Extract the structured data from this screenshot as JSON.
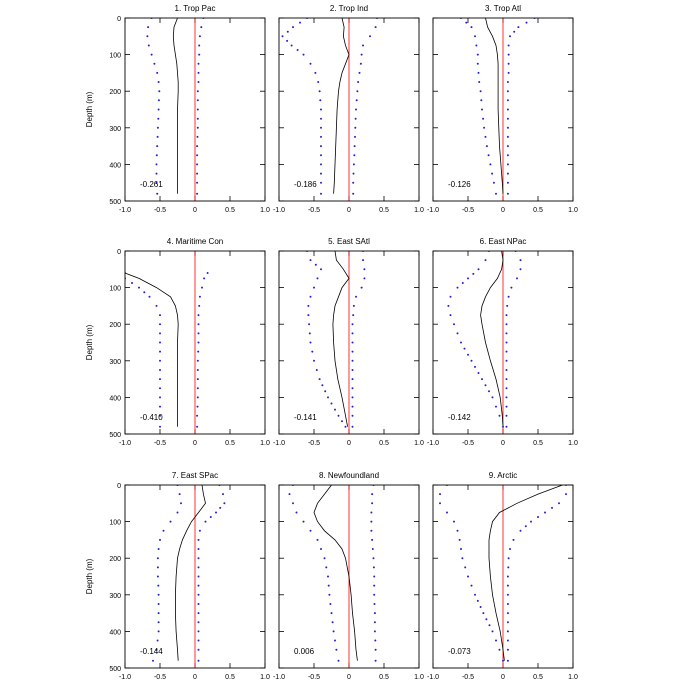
{
  "figure": {
    "ylabel": "Depth (m)",
    "x_ticks": [
      "-1.0",
      "-0.5",
      "0",
      "0.5",
      "1.0"
    ],
    "y_ticks": [
      "0",
      "100",
      "200",
      "300",
      "400",
      "500"
    ],
    "colors": {
      "mean": "#000000",
      "spread": "#2222cc",
      "zero": "#ff0000"
    }
  },
  "chart_data": [
    {
      "type": "line",
      "title": "1. Trop Pac",
      "value_label": "-0.261",
      "xlim": [
        -1,
        1
      ],
      "ylim": [
        0,
        500
      ],
      "y_inverted": true,
      "depth": [
        0,
        25,
        50,
        75,
        100,
        125,
        150,
        175,
        200,
        250,
        300,
        350,
        400,
        450,
        480
      ],
      "series": [
        {
          "name": "mean",
          "style": "solid",
          "values": [
            -0.25,
            -0.3,
            -0.31,
            -0.3,
            -0.28,
            -0.26,
            -0.25,
            -0.24,
            -0.24,
            -0.25,
            -0.25,
            -0.25,
            -0.25,
            -0.25,
            -0.25
          ]
        },
        {
          "name": "lower",
          "style": "dotted",
          "values": [
            -0.62,
            -0.67,
            -0.68,
            -0.66,
            -0.62,
            -0.58,
            -0.54,
            -0.52,
            -0.51,
            -0.52,
            -0.53,
            -0.54,
            -0.55,
            -0.55,
            -0.54
          ]
        },
        {
          "name": "upper",
          "style": "dotted",
          "values": [
            0.12,
            0.09,
            0.07,
            0.06,
            0.06,
            0.05,
            0.05,
            0.05,
            0.04,
            0.04,
            0.04,
            0.03,
            0.03,
            0.03,
            0.03
          ]
        }
      ]
    },
    {
      "type": "line",
      "title": "2. Trop Ind",
      "value_label": "-0.186",
      "xlim": [
        -1,
        1
      ],
      "ylim": [
        0,
        500
      ],
      "y_inverted": true,
      "depth": [
        0,
        25,
        50,
        75,
        100,
        125,
        150,
        175,
        200,
        250,
        300,
        350,
        400,
        450,
        480
      ],
      "series": [
        {
          "name": "mean",
          "style": "solid",
          "values": [
            -0.1,
            -0.07,
            -0.08,
            -0.05,
            0.0,
            -0.05,
            -0.1,
            -0.13,
            -0.15,
            -0.17,
            -0.18,
            -0.19,
            -0.2,
            -0.21,
            -0.22
          ]
        },
        {
          "name": "lower",
          "style": "dotted",
          "values": [
            -0.6,
            -0.8,
            -0.95,
            -0.82,
            -0.65,
            -0.55,
            -0.48,
            -0.44,
            -0.42,
            -0.4,
            -0.4,
            -0.4,
            -0.4,
            -0.4,
            -0.4
          ]
        },
        {
          "name": "upper",
          "style": "dotted",
          "values": [
            0.4,
            0.38,
            0.3,
            0.2,
            0.18,
            0.17,
            0.15,
            0.13,
            0.12,
            0.1,
            0.09,
            0.08,
            0.07,
            0.06,
            0.06
          ]
        }
      ]
    },
    {
      "type": "line",
      "title": "3. Trop Atl",
      "value_label": "-0.126",
      "xlim": [
        -1,
        1
      ],
      "ylim": [
        0,
        500
      ],
      "y_inverted": true,
      "depth": [
        0,
        25,
        50,
        75,
        100,
        125,
        150,
        175,
        200,
        250,
        300,
        350,
        400,
        450,
        480
      ],
      "series": [
        {
          "name": "mean",
          "style": "solid",
          "values": [
            -0.25,
            -0.22,
            -0.15,
            -0.1,
            -0.08,
            -0.07,
            -0.07,
            -0.07,
            -0.07,
            -0.07,
            -0.06,
            -0.05,
            -0.03,
            -0.01,
            0.0
          ]
        },
        {
          "name": "lower",
          "style": "dotted",
          "values": [
            -0.6,
            -0.45,
            -0.4,
            -0.38,
            -0.36,
            -0.36,
            -0.35,
            -0.34,
            -0.32,
            -0.3,
            -0.27,
            -0.23,
            -0.18,
            -0.13,
            -0.1
          ]
        },
        {
          "name": "upper",
          "style": "dotted",
          "values": [
            0.45,
            0.22,
            0.1,
            0.08,
            0.08,
            0.08,
            0.08,
            0.07,
            0.07,
            0.07,
            0.07,
            0.07,
            0.07,
            0.07,
            0.07
          ]
        }
      ]
    },
    {
      "type": "line",
      "title": "4. Maritime Con",
      "value_label": "-0.410",
      "xlim": [
        -1,
        1
      ],
      "ylim": [
        0,
        500
      ],
      "y_inverted": true,
      "depth": [
        60,
        75,
        100,
        125,
        150,
        175,
        200,
        250,
        300,
        350,
        400,
        450,
        480
      ],
      "series": [
        {
          "name": "mean",
          "style": "solid",
          "values": [
            -1.0,
            -0.8,
            -0.55,
            -0.35,
            -0.28,
            -0.25,
            -0.24,
            -0.25,
            -0.25,
            -0.25,
            -0.25,
            -0.25,
            -0.25
          ]
        },
        {
          "name": "lower",
          "style": "dotted",
          "values": [
            -1.0,
            -1.0,
            -0.8,
            -0.65,
            -0.55,
            -0.5,
            -0.5,
            -0.5,
            -0.5,
            -0.5,
            -0.5,
            -0.5,
            -0.5
          ]
        },
        {
          "name": "upper",
          "style": "dotted",
          "values": [
            0.18,
            0.13,
            0.1,
            0.07,
            0.06,
            0.05,
            0.05,
            0.05,
            0.04,
            0.04,
            0.04,
            0.03,
            0.03
          ]
        }
      ]
    },
    {
      "type": "line",
      "title": "5. East SAtl",
      "value_label": "-0.141",
      "xlim": [
        -1,
        1
      ],
      "ylim": [
        0,
        500
      ],
      "y_inverted": true,
      "depth": [
        0,
        25,
        50,
        75,
        100,
        125,
        150,
        175,
        200,
        250,
        300,
        350,
        400,
        450,
        480
      ],
      "series": [
        {
          "name": "mean",
          "style": "solid",
          "values": [
            -0.2,
            -0.18,
            -0.08,
            0.0,
            -0.1,
            -0.15,
            -0.2,
            -0.22,
            -0.23,
            -0.22,
            -0.2,
            -0.16,
            -0.1,
            -0.05,
            -0.02
          ]
        },
        {
          "name": "lower",
          "style": "dotted",
          "values": [
            -0.6,
            -0.55,
            -0.4,
            -0.45,
            -0.5,
            -0.55,
            -0.58,
            -0.58,
            -0.57,
            -0.55,
            -0.5,
            -0.42,
            -0.3,
            -0.15,
            -0.05
          ]
        },
        {
          "name": "upper",
          "style": "dotted",
          "values": [
            0.2,
            0.2,
            0.22,
            0.22,
            0.18,
            0.1,
            0.07,
            0.06,
            0.05,
            0.05,
            0.05,
            0.05,
            0.05,
            0.05,
            0.05
          ]
        }
      ]
    },
    {
      "type": "line",
      "title": "6. East NPac",
      "value_label": "-0.142",
      "xlim": [
        -1,
        1
      ],
      "ylim": [
        0,
        500
      ],
      "y_inverted": true,
      "depth": [
        0,
        25,
        50,
        75,
        100,
        125,
        150,
        175,
        200,
        250,
        300,
        350,
        400,
        450,
        480
      ],
      "series": [
        {
          "name": "mean",
          "style": "solid",
          "values": [
            -0.02,
            0.0,
            -0.02,
            -0.08,
            -0.18,
            -0.25,
            -0.3,
            -0.32,
            -0.3,
            -0.25,
            -0.18,
            -0.1,
            -0.04,
            -0.01,
            0.0
          ]
        },
        {
          "name": "lower",
          "style": "dotted",
          "values": [
            -0.2,
            -0.25,
            -0.35,
            -0.5,
            -0.65,
            -0.75,
            -0.78,
            -0.75,
            -0.7,
            -0.6,
            -0.45,
            -0.3,
            -0.15,
            -0.05,
            0.0
          ]
        },
        {
          "name": "upper",
          "style": "dotted",
          "values": [
            0.18,
            0.25,
            0.25,
            0.2,
            0.12,
            0.08,
            0.06,
            0.05,
            0.05,
            0.05,
            0.05,
            0.05,
            0.05,
            0.05,
            0.05
          ]
        }
      ]
    },
    {
      "type": "line",
      "title": "7. East SPac",
      "value_label": "-0.144",
      "xlim": [
        -1,
        1
      ],
      "ylim": [
        0,
        500
      ],
      "y_inverted": true,
      "depth": [
        0,
        25,
        50,
        75,
        100,
        125,
        150,
        175,
        200,
        250,
        300,
        350,
        400,
        450,
        480
      ],
      "series": [
        {
          "name": "mean",
          "style": "solid",
          "values": [
            0.1,
            0.12,
            0.15,
            0.05,
            -0.05,
            -0.12,
            -0.18,
            -0.22,
            -0.25,
            -0.27,
            -0.28,
            -0.28,
            -0.27,
            -0.25,
            -0.24
          ]
        },
        {
          "name": "lower",
          "style": "dotted",
          "values": [
            -0.25,
            -0.22,
            -0.2,
            -0.25,
            -0.35,
            -0.45,
            -0.5,
            -0.52,
            -0.53,
            -0.53,
            -0.52,
            -0.52,
            -0.52,
            -0.55,
            -0.6
          ]
        },
        {
          "name": "upper",
          "style": "dotted",
          "values": [
            0.35,
            0.4,
            0.42,
            0.3,
            0.15,
            0.07,
            0.05,
            0.05,
            0.05,
            0.05,
            0.05,
            0.05,
            0.05,
            0.05,
            0.05
          ]
        }
      ]
    },
    {
      "type": "line",
      "title": "8. Newfoundland",
      "value_label": "0.006",
      "xlim": [
        -1,
        1
      ],
      "ylim": [
        0,
        500
      ],
      "y_inverted": true,
      "depth": [
        0,
        25,
        50,
        75,
        100,
        125,
        150,
        175,
        200,
        250,
        300,
        350,
        400,
        450,
        480
      ],
      "series": [
        {
          "name": "mean",
          "style": "solid",
          "values": [
            -0.25,
            -0.35,
            -0.45,
            -0.5,
            -0.45,
            -0.35,
            -0.2,
            -0.1,
            -0.05,
            0.0,
            0.03,
            0.05,
            0.08,
            0.1,
            0.12
          ]
        },
        {
          "name": "lower",
          "style": "dotted",
          "values": [
            -0.8,
            -0.85,
            -0.8,
            -0.75,
            -0.65,
            -0.55,
            -0.45,
            -0.4,
            -0.35,
            -0.3,
            -0.28,
            -0.25,
            -0.22,
            -0.18,
            -0.15
          ]
        },
        {
          "name": "upper",
          "style": "dotted",
          "values": [
            0.35,
            0.33,
            0.33,
            0.32,
            0.32,
            0.32,
            0.33,
            0.34,
            0.35,
            0.36,
            0.36,
            0.37,
            0.37,
            0.38,
            0.38
          ]
        }
      ]
    },
    {
      "type": "line",
      "title": "9. Arctic",
      "value_label": "-0.073",
      "xlim": [
        -1,
        1
      ],
      "ylim": [
        0,
        500
      ],
      "y_inverted": true,
      "depth": [
        0,
        25,
        50,
        75,
        100,
        125,
        150,
        175,
        200,
        250,
        300,
        350,
        400,
        450,
        480
      ],
      "series": [
        {
          "name": "mean",
          "style": "solid",
          "values": [
            0.85,
            0.5,
            0.2,
            -0.05,
            -0.15,
            -0.18,
            -0.2,
            -0.2,
            -0.2,
            -0.18,
            -0.15,
            -0.1,
            -0.04,
            0.0,
            0.02
          ]
        },
        {
          "name": "lower",
          "style": "dotted",
          "values": [
            -0.8,
            -0.9,
            -0.9,
            -0.8,
            -0.7,
            -0.65,
            -0.62,
            -0.6,
            -0.58,
            -0.5,
            -0.4,
            -0.28,
            -0.15,
            -0.05,
            0.0
          ]
        },
        {
          "name": "upper",
          "style": "dotted",
          "values": [
            0.9,
            0.9,
            0.8,
            0.6,
            0.4,
            0.25,
            0.15,
            0.1,
            0.08,
            0.07,
            0.07,
            0.07,
            0.07,
            0.07,
            0.07
          ]
        }
      ]
    }
  ]
}
